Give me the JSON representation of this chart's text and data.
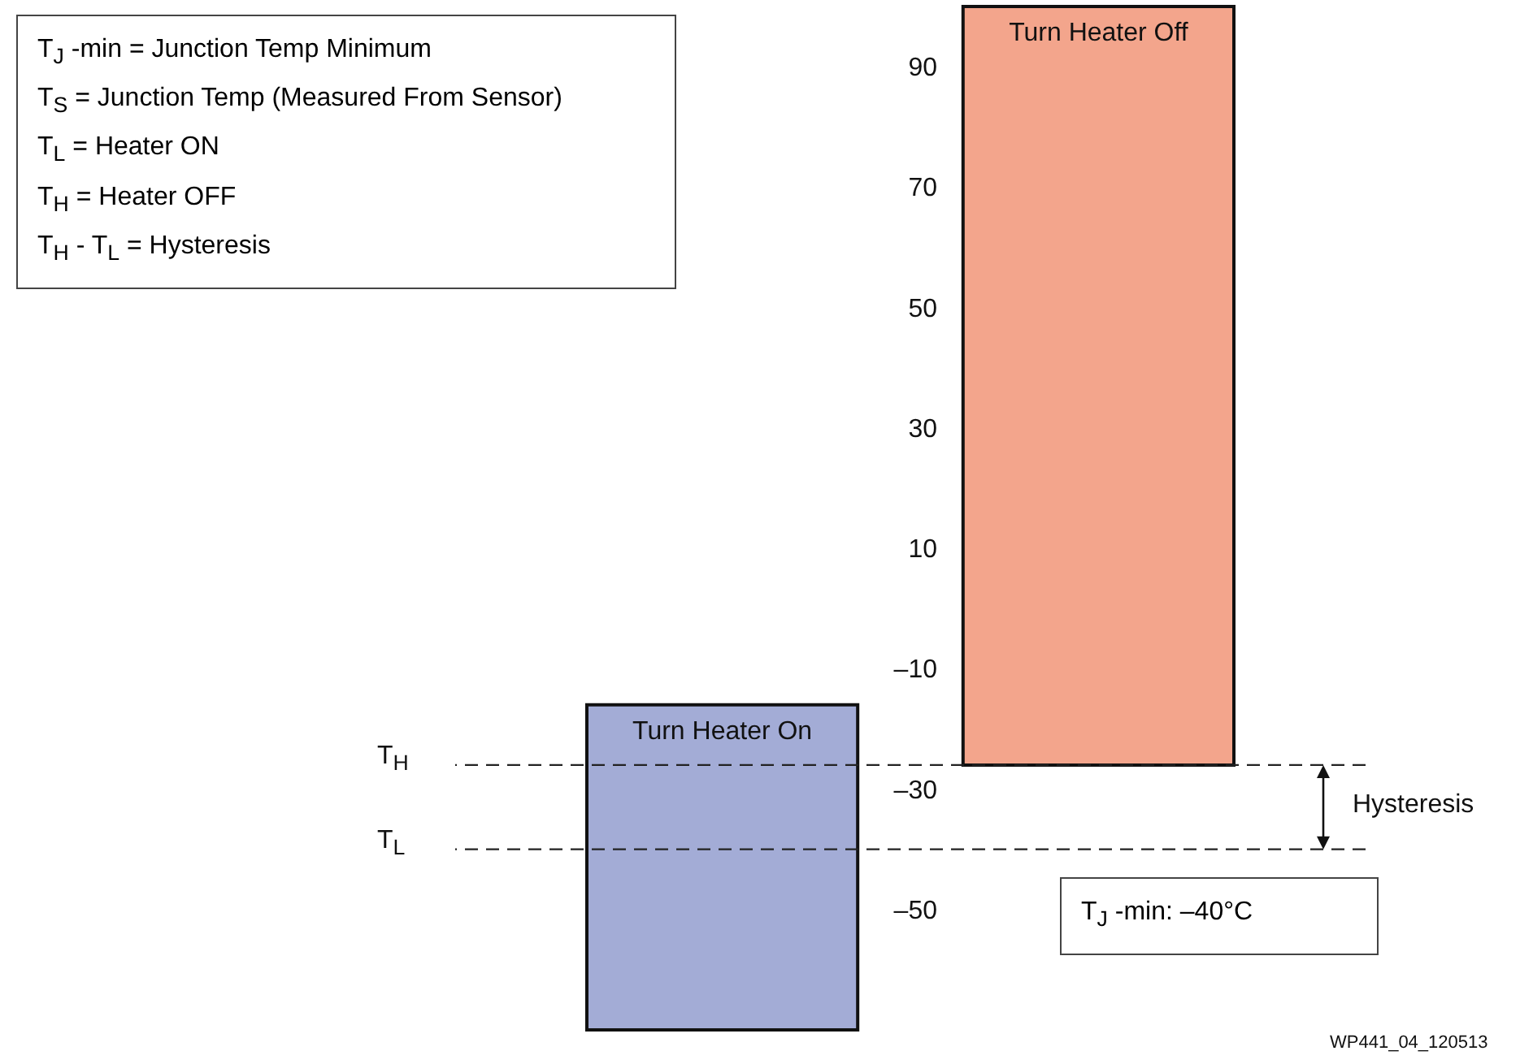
{
  "chart_data": {
    "type": "bar",
    "categories": [
      null,
      null
    ],
    "values": [
      54,
      126
    ],
    "base": [
      -70,
      -26
    ],
    "colors": [
      "#a3acd6",
      "#f3a58c"
    ],
    "value_labels": [
      "Turn Heater On",
      "Turn Heater Off"
    ],
    "ylim": [
      -70,
      100
    ],
    "yticks": [
      {
        "value": -50,
        "label": "–50"
      },
      {
        "value": -30,
        "label": "–30"
      },
      {
        "value": -10,
        "label": "–10"
      },
      10,
      30,
      50,
      70,
      90
    ],
    "grid": false,
    "ref_lines": [
      {
        "axis": "y",
        "value": -26,
        "label": "T$_{H}$",
        "line_style": "dashed"
      },
      {
        "axis": "y",
        "value": -40,
        "label": "T$_{L}$",
        "line_style": "dashed"
      }
    ],
    "annotations": [
      "T$_{J}$ -min = Junction Temp Minimum",
      "T$_{S}$ = Junction Temp (Measured From Sensor)",
      "T$_{L}$ = Heater ON",
      "T$_{H}$ = Heater OFF",
      "T$_{H}$ - T$_{L}$ = Hysteresis",
      "Hysteresis",
      "T$_{J}$ -min: –40°C",
      "WP441_04_120513"
    ]
  }
}
